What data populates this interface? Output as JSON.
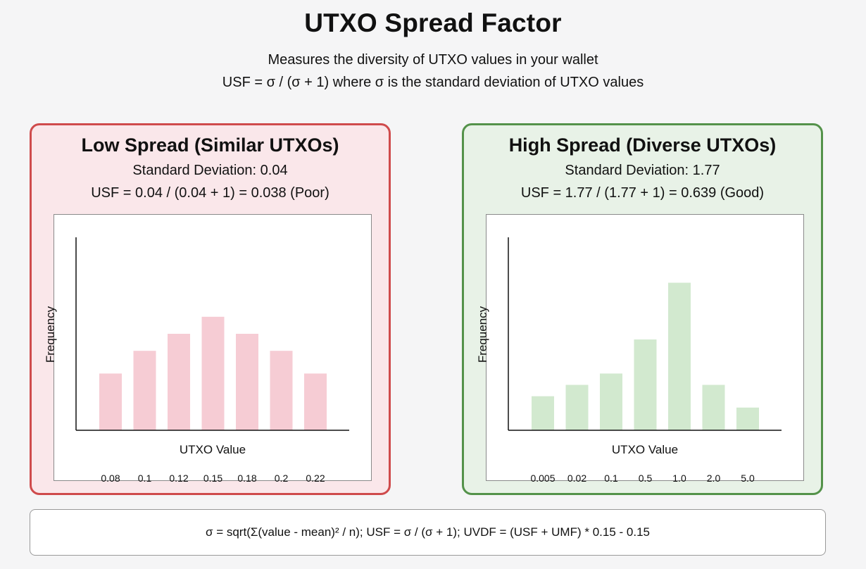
{
  "title": "UTXO Spread Factor",
  "subtitle_line1": "Measures the diversity of UTXO values in your wallet",
  "subtitle_line2": "USF = σ / (σ + 1) where σ is the standard deviation of UTXO values",
  "panels": {
    "low": {
      "title": "Low Spread (Similar UTXOs)",
      "std_dev_text": "Standard Deviation: 0.04",
      "usf_text": "USF = 0.04 / (0.04 + 1) = 0.038 (Poor)",
      "colors": {
        "background": "#fae7ea",
        "border": "#cf4b4c",
        "bar": "#f6ccd4"
      }
    },
    "high": {
      "title": "High Spread (Diverse UTXOs)",
      "std_dev_text": "Standard Deviation: 1.77",
      "usf_text": "USF = 1.77 / (1.77 + 1) = 0.639 (Good)",
      "colors": {
        "background": "#e8f2e7",
        "border": "#54924a",
        "bar": "#d2e9cf"
      }
    }
  },
  "chart_data": [
    {
      "type": "bar",
      "title": "",
      "xlabel": "UTXO Value",
      "ylabel": "Frequency",
      "categories": [
        "0.08",
        "0.1",
        "0.12",
        "0.15",
        "0.18",
        "0.2",
        "0.22"
      ],
      "values": [
        5,
        7,
        8.5,
        10,
        8.5,
        7,
        5
      ],
      "ylim": [
        0,
        17
      ],
      "grid": false,
      "bar_color": "#f6ccd4"
    },
    {
      "type": "bar",
      "title": "",
      "xlabel": "UTXO Value",
      "ylabel": "Frequency",
      "categories": [
        "0.005",
        "0.02",
        "0.1",
        "0.5",
        "1.0",
        "2.0",
        "5.0"
      ],
      "values": [
        3,
        4,
        5,
        8,
        13,
        4,
        2
      ],
      "ylim": [
        0,
        17
      ],
      "grid": false,
      "bar_color": "#d2e9cf"
    }
  ],
  "formula": "σ = sqrt(Σ(value - mean)² / n); USF = σ / (σ + 1); UVDF = (USF + UMF) * 0.15 - 0.15"
}
